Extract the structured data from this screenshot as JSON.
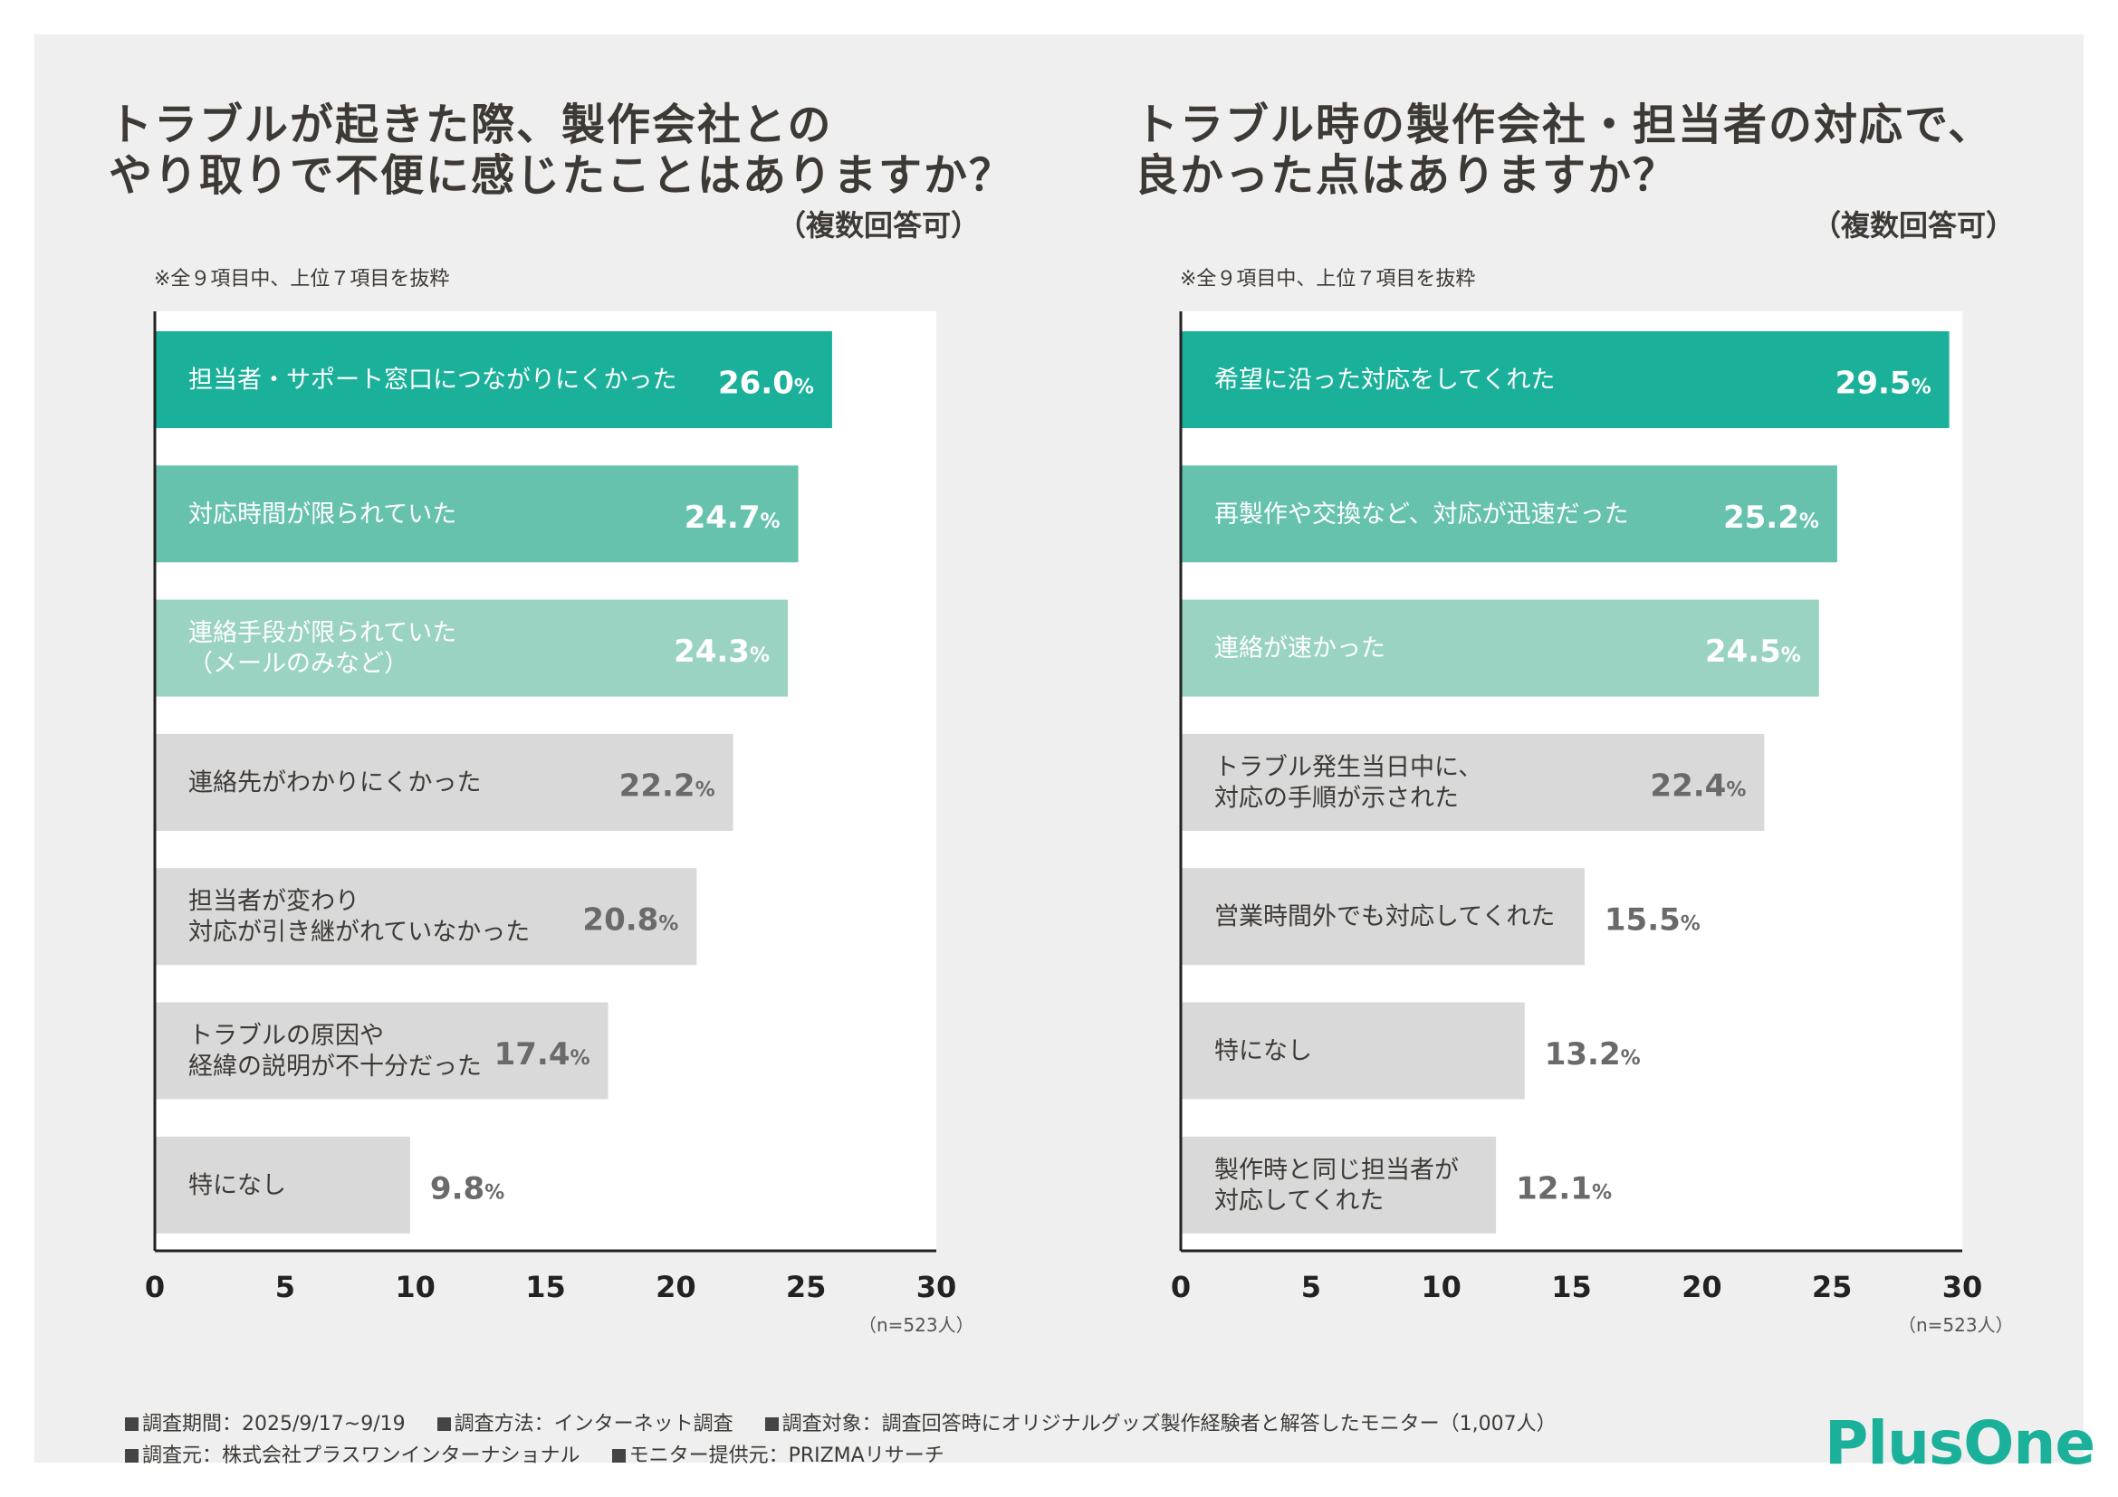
{
  "chart_data": [
    {
      "type": "bar",
      "orientation": "horizontal",
      "title_lines": [
        "トラブルが起きた際、製作会社との",
        "やり取りで不便に感じたことはありますか？"
      ],
      "multiple_answers": "（複数回答可）",
      "note": "※全９項目中、上位７項目を抜粋",
      "categories": [
        [
          "担当者・サポート窓口につながりにくかった"
        ],
        [
          "対応時間が限られていた"
        ],
        [
          "連絡手段が限られていた",
          "（メールのみなど）"
        ],
        [
          "連絡先がわかりにくかった"
        ],
        [
          "担当者が変わり",
          "対応が引き継がれていなかった"
        ],
        [
          "トラブルの原因や",
          "経緯の説明が不十分だった"
        ],
        [
          "特になし"
        ]
      ],
      "values": [
        26.0,
        24.7,
        24.3,
        22.2,
        20.8,
        17.4,
        9.8
      ],
      "value_labels": [
        "26.0",
        "24.7",
        "24.3",
        "22.2",
        "20.8",
        "17.4",
        "9.8"
      ],
      "unit": "%",
      "colors": [
        "#1bb09a",
        "#67c2ad",
        "#9ad3c2",
        "#d9d9d9",
        "#d9d9d9",
        "#d9d9d9",
        "#d9d9d9"
      ],
      "xlim": [
        0,
        30
      ],
      "xticks": [
        "0",
        "5",
        "10",
        "15",
        "20",
        "25",
        "30"
      ],
      "n_label": "（n=523人）"
    },
    {
      "type": "bar",
      "orientation": "horizontal",
      "title_lines": [
        "トラブル時の製作会社・担当者の対応で、",
        "良かった点はありますか？"
      ],
      "multiple_answers": "（複数回答可）",
      "note": "※全９項目中、上位７項目を抜粋",
      "categories": [
        [
          "希望に沿った対応をしてくれた"
        ],
        [
          "再製作や交換など、対応が迅速だった"
        ],
        [
          "連絡が速かった"
        ],
        [
          "トラブル発生当日中に、",
          "対応の手順が示された"
        ],
        [
          "営業時間外でも対応してくれた"
        ],
        [
          "特になし"
        ],
        [
          "製作時と同じ担当者が",
          "対応してくれた"
        ]
      ],
      "values": [
        29.5,
        25.2,
        24.5,
        22.4,
        15.5,
        13.2,
        12.1
      ],
      "value_labels": [
        "29.5",
        "25.2",
        "24.5",
        "22.4",
        "15.5",
        "13.2",
        "12.1"
      ],
      "unit": "%",
      "colors": [
        "#1bb09a",
        "#67c2ad",
        "#9ad3c2",
        "#d9d9d9",
        "#d9d9d9",
        "#d9d9d9",
        "#d9d9d9"
      ],
      "xlim": [
        0,
        30
      ],
      "xticks": [
        "0",
        "5",
        "10",
        "15",
        "20",
        "25",
        "30"
      ],
      "n_label": "（n=523人）"
    }
  ],
  "footer": {
    "row1": [
      "調査期間：2025/9/17~9/19",
      "調査方法：インターネット調査",
      "調査対象：調査回答時にオリジナルグッズ製作経験者と解答したモニター（1,007人）"
    ],
    "row2": [
      "調査元：株式会社プラスワンインターナショナル",
      "モニター提供元：PRIZMAリサーチ"
    ]
  },
  "logo": "PlusOne",
  "colors": {
    "card_bg": "#efefef",
    "plot_bg": "#ffffff",
    "brand": "#1bb09a",
    "text": "#3d3a36"
  }
}
